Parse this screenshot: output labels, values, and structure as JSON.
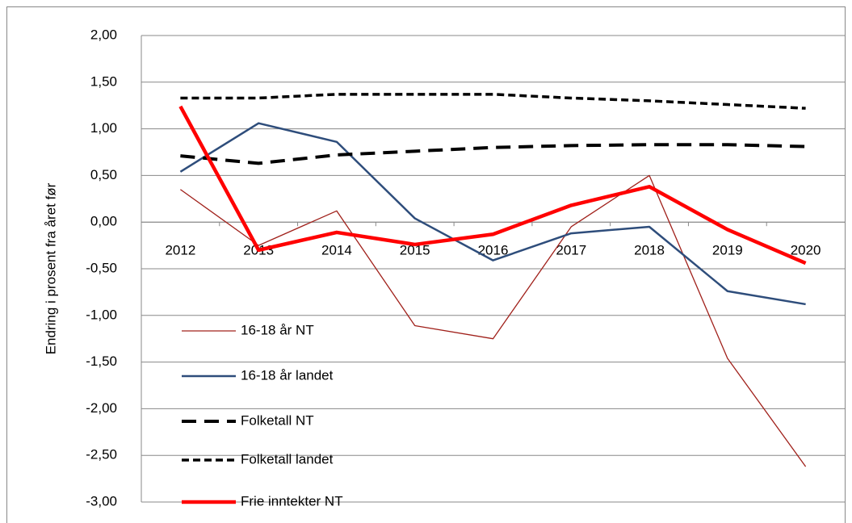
{
  "chart_data": {
    "type": "line",
    "y_label": "Endring i prosent fra året før",
    "categories": [
      "2012",
      "2013",
      "2014",
      "2015",
      "2016",
      "2017",
      "2018",
      "2019",
      "2020"
    ],
    "series": [
      {
        "name": "16-18 år NT",
        "color": "#a0201a",
        "width": 1.3,
        "dash": "none",
        "values": [
          0.35,
          -0.25,
          0.12,
          -1.11,
          -1.25,
          -0.05,
          0.5,
          -1.46,
          -2.62
        ]
      },
      {
        "name": "16-18 år landet",
        "color": "#2e4d7b",
        "width": 2.5,
        "dash": "none",
        "values": [
          0.54,
          1.06,
          0.86,
          0.04,
          -0.41,
          -0.12,
          -0.05,
          -0.74,
          -0.88
        ]
      },
      {
        "name": "Folketall NT",
        "color": "#000000",
        "width": 4,
        "dash": "18 10",
        "values": [
          0.71,
          0.63,
          0.72,
          0.76,
          0.8,
          0.82,
          0.83,
          0.83,
          0.81
        ]
      },
      {
        "name": "Folketall landet",
        "color": "#000000",
        "width": 3.5,
        "dash": "9 5",
        "values": [
          1.33,
          1.33,
          1.37,
          1.37,
          1.37,
          1.33,
          1.3,
          1.26,
          1.22
        ]
      },
      {
        "name": "Frie inntekter NT",
        "color": "#ff0000",
        "width": 4.5,
        "dash": "none",
        "values": [
          1.24,
          -0.3,
          -0.11,
          -0.24,
          -0.13,
          0.18,
          0.38,
          -0.08,
          -0.44
        ]
      }
    ],
    "ylim": [
      -3,
      2
    ],
    "yticks": [
      {
        "value": -3,
        "label": "-3,00"
      },
      {
        "value": -2.5,
        "label": "-2,50"
      },
      {
        "value": -2,
        "label": "-2,00"
      },
      {
        "value": -1.5,
        "label": "-1,50"
      },
      {
        "value": -1,
        "label": "-1,00"
      },
      {
        "value": -0.5,
        "label": "-0,50"
      },
      {
        "value": 0,
        "label": "0,00"
      },
      {
        "value": 0.5,
        "label": "0,50"
      },
      {
        "value": 1,
        "label": "1,00"
      },
      {
        "value": 1.5,
        "label": "1,50"
      },
      {
        "value": 2,
        "label": "2,00"
      }
    ],
    "grid": true,
    "legend": "left"
  }
}
